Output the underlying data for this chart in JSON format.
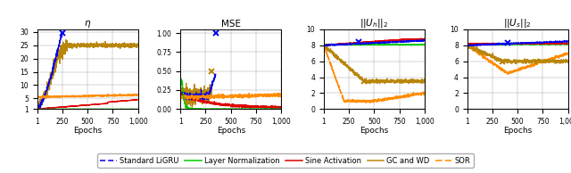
{
  "title1": "$\\eta$",
  "title2": "MSE",
  "title3": "$||U_h||_2$",
  "title4": "$||U_s||_2$",
  "xlabel": "Epochs",
  "colors": {
    "ligru": "#0000EE",
    "layernorm": "#00CC00",
    "sine": "#DD0000",
    "gcwd": "#B8860B",
    "sor": "#FF8C00"
  },
  "legend": [
    "Standard LiGRU",
    "Layer Normalization",
    "Sine Activation",
    "GC and WD",
    "SOR"
  ]
}
